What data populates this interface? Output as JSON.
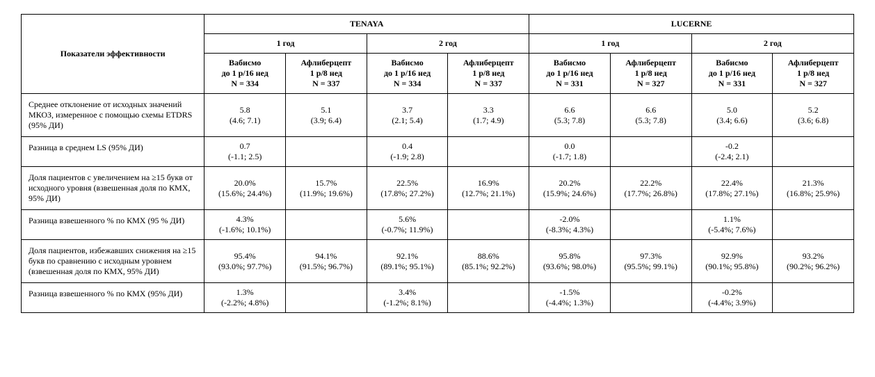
{
  "headers": {
    "indicator": "Показатели эффективности",
    "studies": [
      "TENAYA",
      "LUCERNE"
    ],
    "years": [
      "1 год",
      "2 год"
    ],
    "arms": {
      "tenaya": {
        "vab": [
          "Вабисмо",
          "до 1 р/16 нед",
          "N = 334"
        ],
        "afl": [
          "Афлиберцепт",
          "1 р/8 нед",
          "N = 337"
        ]
      },
      "lucerne": {
        "vab": [
          "Вабисмо",
          "до 1 р/16 нед",
          "N = 331"
        ],
        "afl": [
          "Афлиберцепт",
          "1 р/8 нед",
          "N = 327"
        ]
      }
    }
  },
  "rows": [
    {
      "label": "Среднее отклонение от исходных значений МКОЗ, измеренное с помощью схемы ETDRS (95% ДИ)",
      "cells": [
        {
          "v": "5.8",
          "ci": "(4.6; 7.1)"
        },
        {
          "v": "5.1",
          "ci": "(3.9; 6.4)"
        },
        {
          "v": "3.7",
          "ci": "(2.1; 5.4)"
        },
        {
          "v": "3.3",
          "ci": "(1.7; 4.9)"
        },
        {
          "v": "6.6",
          "ci": "(5.3; 7.8)"
        },
        {
          "v": "6.6",
          "ci": "(5.3; 7.8)"
        },
        {
          "v": "5.0",
          "ci": "(3.4; 6.6)"
        },
        {
          "v": "5.2",
          "ci": "(3.6; 6.8)"
        }
      ]
    },
    {
      "label": "Разница в среднем LS (95% ДИ)",
      "cells": [
        {
          "v": "0.7",
          "ci": "(-1.1; 2.5)"
        },
        null,
        {
          "v": "0.4",
          "ci": "(-1.9; 2.8)"
        },
        null,
        {
          "v": "0.0",
          "ci": "(-1.7; 1.8)"
        },
        null,
        {
          "v": "-0.2",
          "ci": "(-2.4; 2.1)"
        },
        null
      ]
    },
    {
      "label": "Доля пациентов с увеличением на ≥15 букв от исходного уровня (взвешенная доля по КМХ, 95% ДИ)",
      "cells": [
        {
          "v": "20.0%",
          "ci": "(15.6%; 24.4%)"
        },
        {
          "v": "15.7%",
          "ci": "(11.9%; 19.6%)"
        },
        {
          "v": "22.5%",
          "ci": "(17.8%; 27.2%)"
        },
        {
          "v": "16.9%",
          "ci": "(12.7%; 21.1%)"
        },
        {
          "v": "20.2%",
          "ci": "(15.9%; 24.6%)"
        },
        {
          "v": "22.2%",
          "ci": "(17.7%; 26.8%)"
        },
        {
          "v": "22.4%",
          "ci": "(17.8%; 27.1%)"
        },
        {
          "v": "21.3%",
          "ci": "(16.8%; 25.9%)"
        }
      ]
    },
    {
      "label": "Разница взвешенного % по КМХ (95 % ДИ)",
      "cells": [
        {
          "v": "4.3%",
          "ci": "(-1.6%; 10.1%)"
        },
        null,
        {
          "v": "5.6%",
          "ci": "(-0.7%; 11.9%)"
        },
        null,
        {
          "v": "-2.0%",
          "ci": "(-8.3%; 4.3%)"
        },
        null,
        {
          "v": "1.1%",
          "ci": "(-5.4%; 7.6%)"
        },
        null
      ]
    },
    {
      "label": "Доля пациентов, избежавших снижения на ≥15 букв по сравнению с исходным уровнем (взвешенная доля по КМХ, 95% ДИ)",
      "cells": [
        {
          "v": "95.4%",
          "ci": "(93.0%; 97.7%)"
        },
        {
          "v": "94.1%",
          "ci": "(91.5%; 96.7%)"
        },
        {
          "v": "92.1%",
          "ci": "(89.1%; 95.1%)"
        },
        {
          "v": "88.6%",
          "ci": "(85.1%; 92.2%)"
        },
        {
          "v": "95.8%",
          "ci": "(93.6%; 98.0%)"
        },
        {
          "v": "97.3%",
          "ci": "(95.5%; 99.1%)"
        },
        {
          "v": "92.9%",
          "ci": "(90.1%; 95.8%)"
        },
        {
          "v": "93.2%",
          "ci": "(90.2%; 96.2%)"
        }
      ]
    },
    {
      "label": "Разница взвешенного % по КМХ (95% ДИ)",
      "cells": [
        {
          "v": "1.3%",
          "ci": "(-2.2%; 4.8%)"
        },
        null,
        {
          "v": "3.4%",
          "ci": "(-1.2%; 8.1%)"
        },
        null,
        {
          "v": "-1.5%",
          "ci": "(-4.4%; 1.3%)"
        },
        null,
        {
          "v": "-0.2%",
          "ci": "(-4.4%; 3.9%)"
        },
        null
      ]
    }
  ]
}
